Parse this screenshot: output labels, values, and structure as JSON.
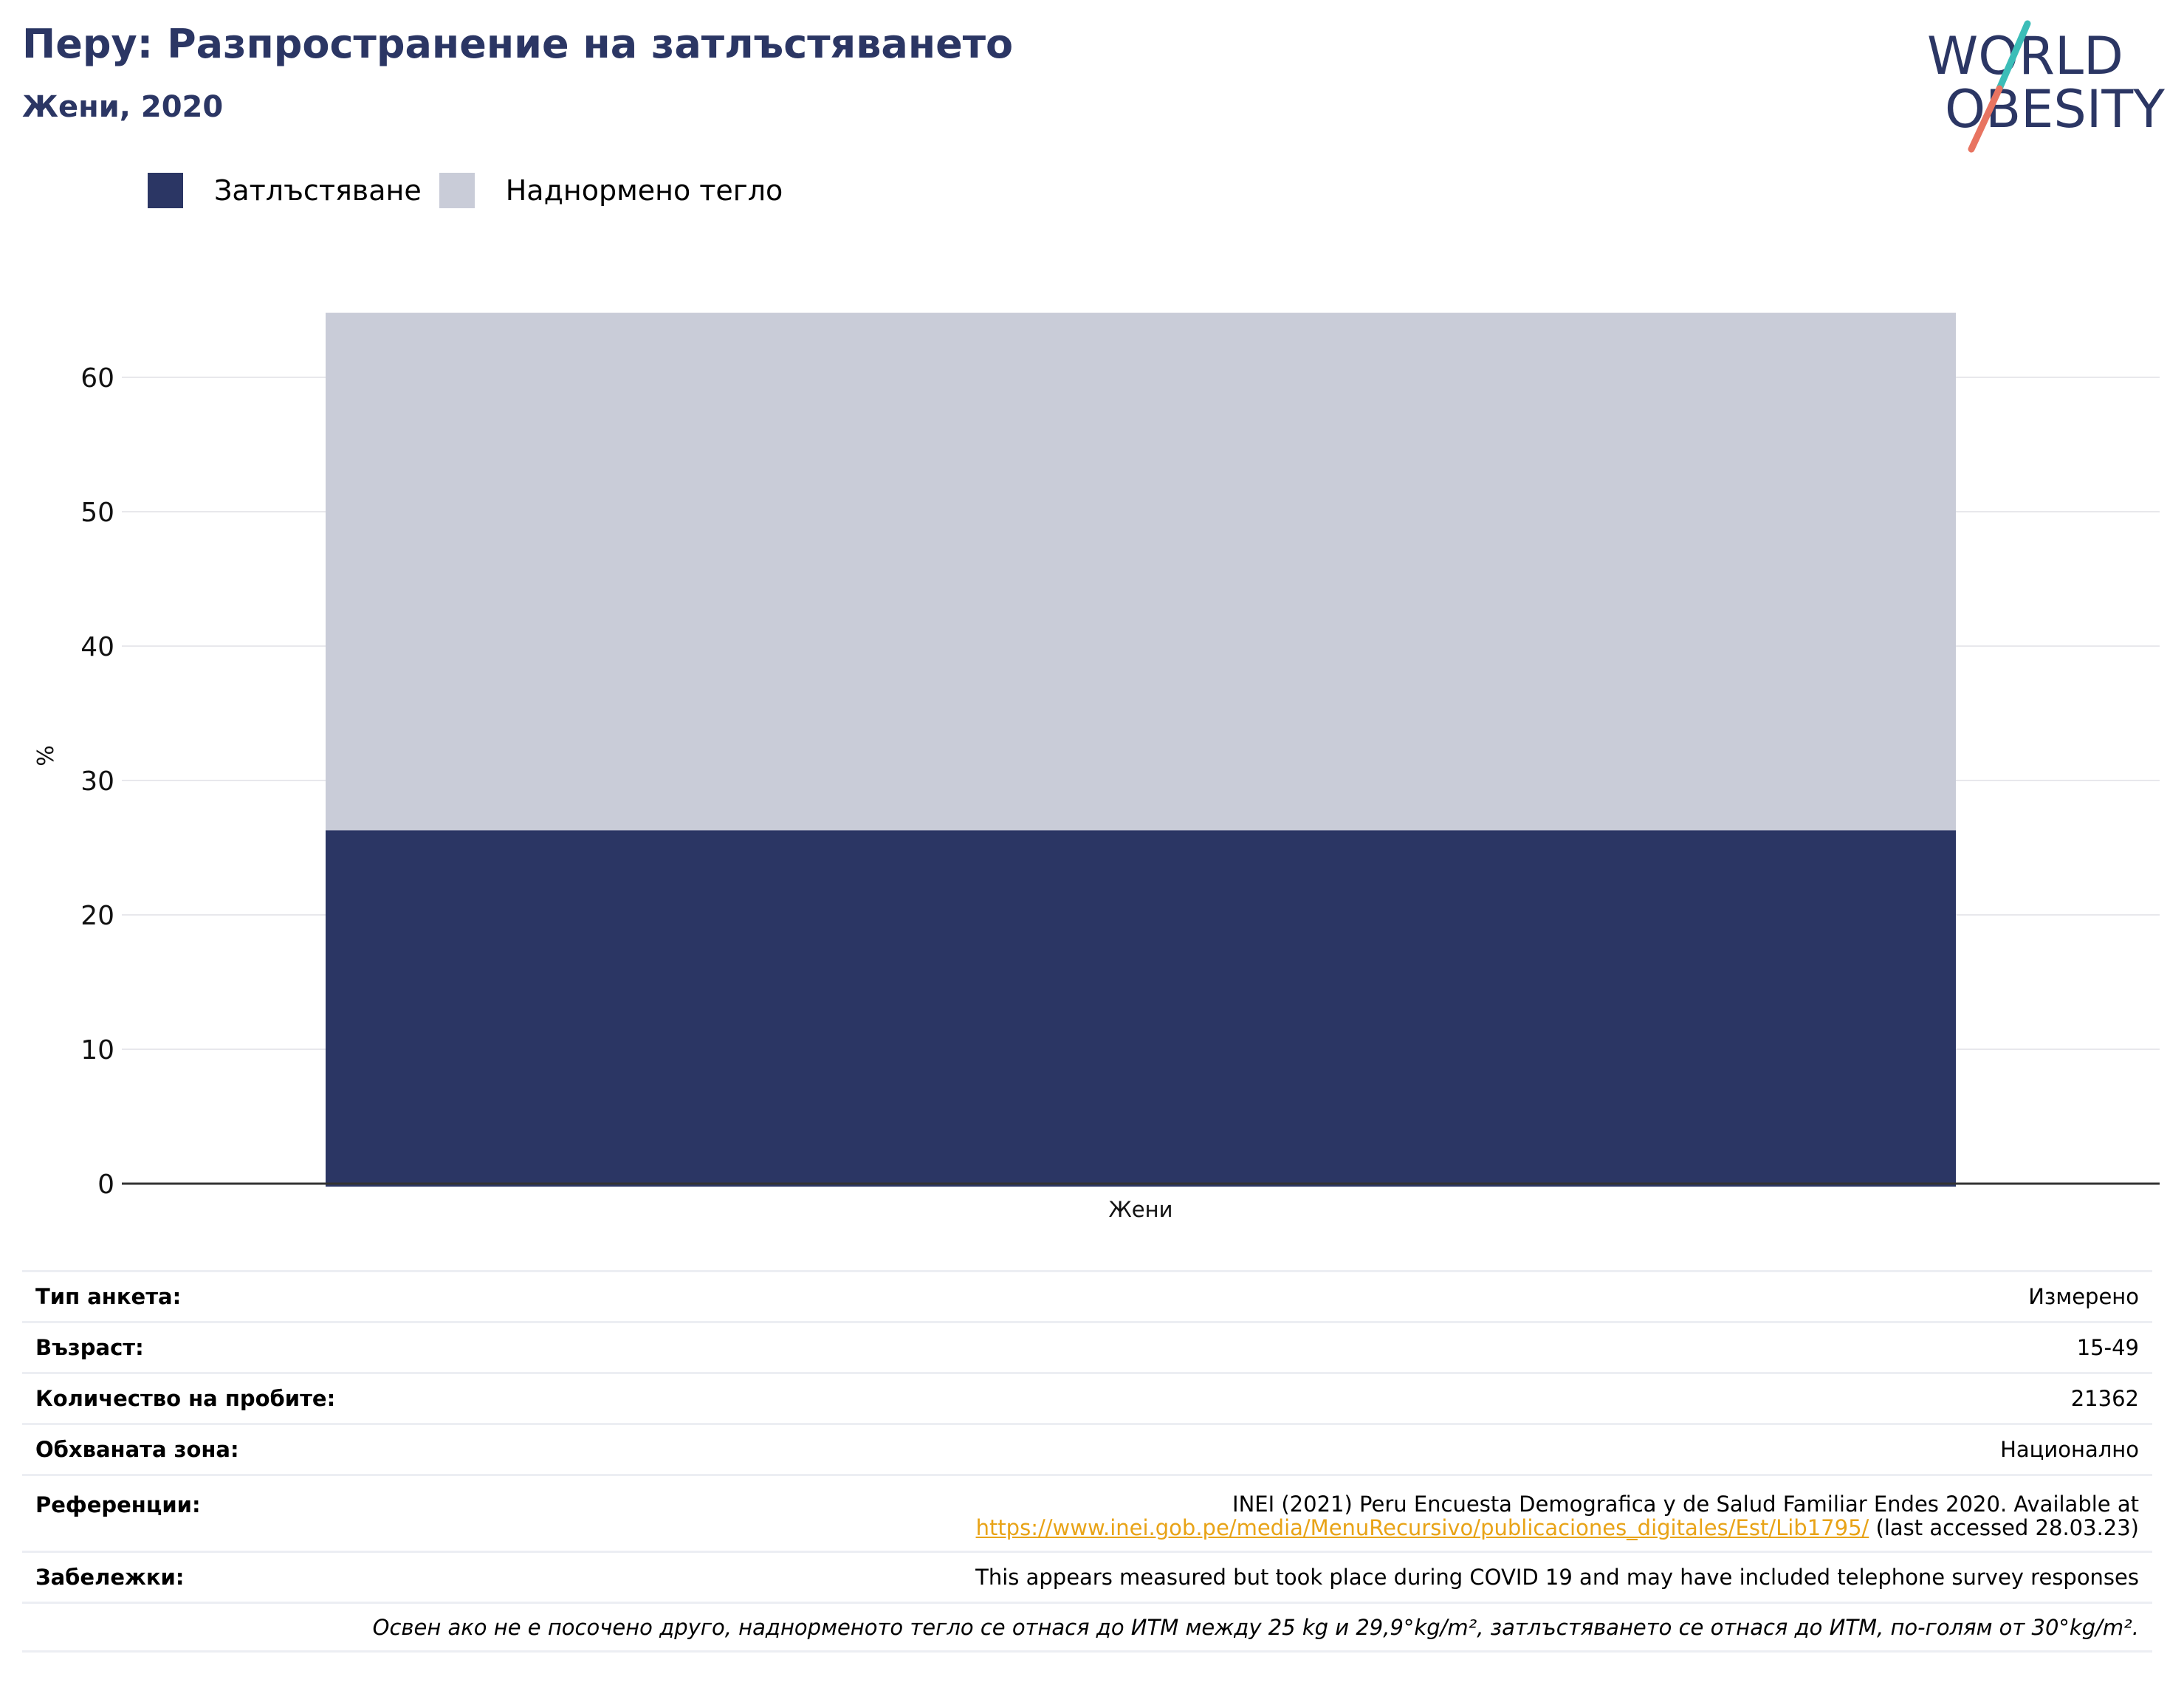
{
  "header": {
    "title": "Перу: Разпространение на затлъстяването",
    "subtitle": "Жени, 2020"
  },
  "logo": {
    "line1": "WORLD",
    "line2": "OBESITY",
    "name": "world-obesity-logo"
  },
  "colors": {
    "obesity": "#2b3664",
    "overweight": "#c9ccd8",
    "title": "#2b3664",
    "link": "#e8a317",
    "accent_teal": "#3bbdb8",
    "accent_coral": "#e87461"
  },
  "legend": [
    {
      "label": "Затлъстяване",
      "color": "#2b3664"
    },
    {
      "label": "Наднормено тегло",
      "color": "#c9ccd8"
    }
  ],
  "chart_data": {
    "type": "bar",
    "stacked": true,
    "categories": [
      "Жени"
    ],
    "series": [
      {
        "name": "Затлъстяване",
        "values": [
          26.3
        ]
      },
      {
        "name": "Наднормено тегло",
        "values": [
          38.5
        ]
      }
    ],
    "ylabel": "%",
    "xlabel": "",
    "ylim": [
      0,
      65
    ],
    "yticks": [
      0,
      10,
      20,
      30,
      40,
      50,
      60
    ],
    "grid": true,
    "legend_position": "top-left"
  },
  "info": {
    "survey_type": {
      "key": "Тип анкета:",
      "value": "Измерено"
    },
    "age": {
      "key": "Възраст:",
      "value": "15-49"
    },
    "sample_size": {
      "key": "Количество на пробите:",
      "value": "21362"
    },
    "coverage": {
      "key": "Обхваната зона:",
      "value": "Национално"
    },
    "references": {
      "key": "Референции:",
      "text": "INEI (2021) Peru Encuesta Demografica y de Salud Familiar Endes 2020. Available at",
      "link": "https://www.inei.gob.pe/media/MenuRecursivo/publicaciones_digitales/Est/Lib1795/",
      "suffix": " (last accessed 28.03.23)"
    },
    "notes": {
      "key": "Забележки:",
      "value": "This appears measured but took place during COVID 19 and may have included telephone survey responses"
    },
    "footnote": "Освен ако не е посочено друго, наднорменото тегло се отнася до ИТМ между 25 kg и 29,9°kg/m², затлъстяването се отнася до ИТМ, по-голям от 30°kg/m²."
  }
}
